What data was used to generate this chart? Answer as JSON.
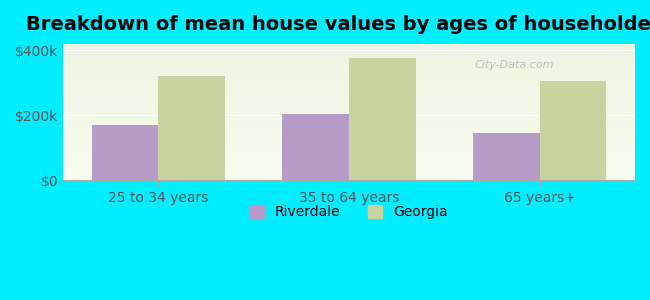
{
  "title": "Breakdown of mean house values by ages of householders",
  "categories": [
    "25 to 34 years",
    "35 to 64 years",
    "65 years+"
  ],
  "riverdale_values": [
    170000,
    205000,
    145000
  ],
  "georgia_values": [
    320000,
    375000,
    305000
  ],
  "riverdale_color": "#b89cc8",
  "georgia_color": "#c8d4a0",
  "ylim": [
    0,
    420000
  ],
  "yticks": [
    0,
    200000,
    400000
  ],
  "ytick_labels": [
    "$0",
    "$200k",
    "$400k"
  ],
  "bar_width": 0.35,
  "background_color": "#00eeff",
  "plot_bg_color_top": "#e8f0d8",
  "plot_bg_color_bottom": "#f8fdf0",
  "legend_labels": [
    "Riverdale",
    "Georgia"
  ],
  "title_fontsize": 14,
  "tick_fontsize": 10,
  "legend_fontsize": 10
}
